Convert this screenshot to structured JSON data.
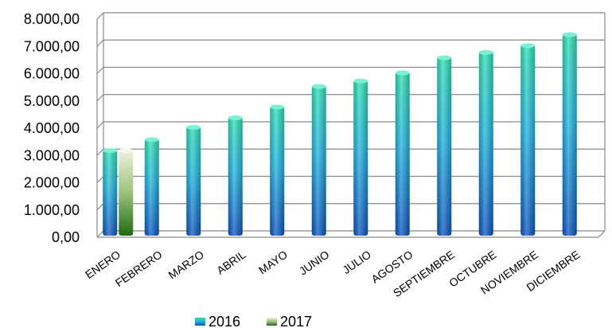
{
  "chart_data": {
    "type": "bar",
    "categories": [
      "ENERO",
      "FEBRERO",
      "MARZO",
      "ABRIL",
      "MAYO",
      "JUNIO",
      "JULIO",
      "AGOSTO",
      "SEPTIEMBRE",
      "OCTUBRE",
      "NOVIEMBRE",
      "DICIEMBRE"
    ],
    "series": [
      {
        "name": "2016",
        "values": [
          3150,
          3550,
          4000,
          4350,
          4750,
          5500,
          5700,
          6000,
          6550,
          6750,
          7000,
          7400
        ],
        "color": "#1e90d8"
      },
      {
        "name": "2017",
        "values": [
          3150,
          null,
          null,
          null,
          null,
          null,
          null,
          null,
          null,
          null,
          null,
          null
        ],
        "color": "#3a8a2a"
      }
    ],
    "yticks": [
      "0,00",
      "1.000,00",
      "2.000,00",
      "3.000,00",
      "4.000,00",
      "5.000,00",
      "6.000,00",
      "7.000,00",
      "8.000,00"
    ],
    "ylim": [
      0,
      8000
    ],
    "grid": true,
    "legend_position": "bottom",
    "title": "",
    "xlabel": "",
    "ylabel": ""
  }
}
